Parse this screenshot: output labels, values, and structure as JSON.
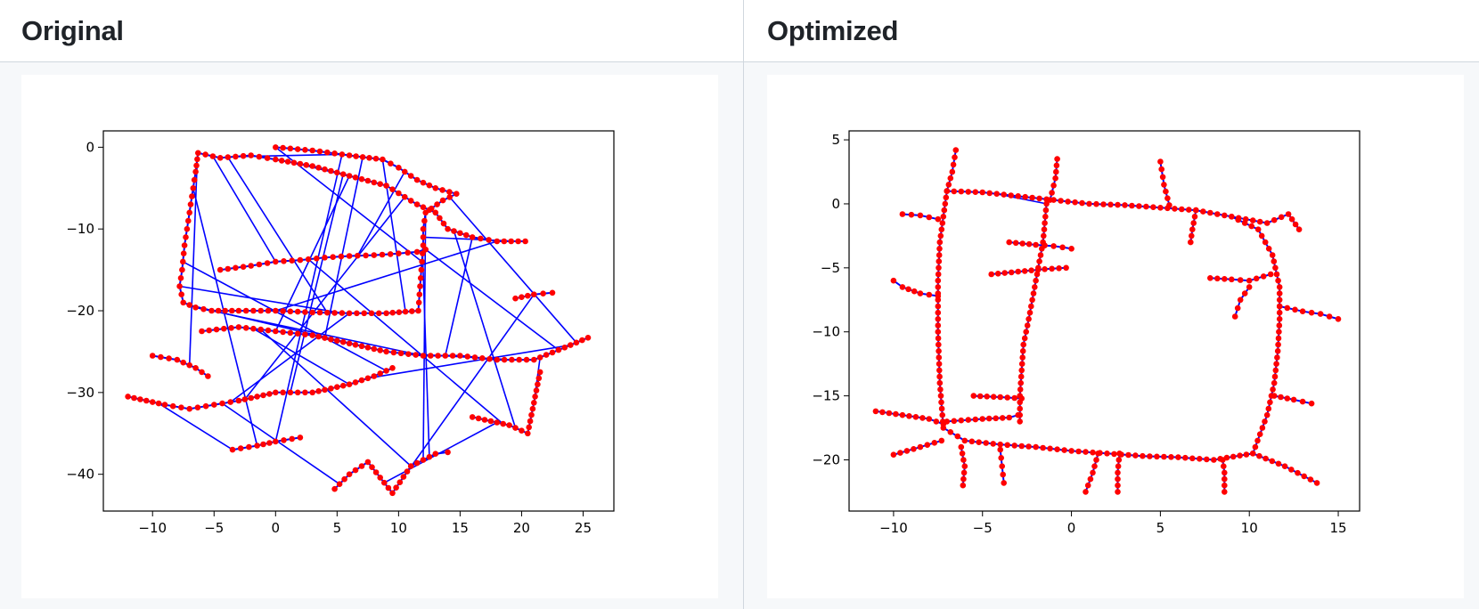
{
  "panels": [
    {
      "title": "Original",
      "chart_data": {
        "type": "line",
        "title": "",
        "xlabel": "",
        "ylabel": "",
        "xlim": [
          -14,
          27.5
        ],
        "ylim": [
          -44.5,
          2
        ],
        "xticks": [
          -10,
          -5,
          0,
          5,
          10,
          15,
          20,
          25
        ],
        "yticks": [
          0,
          -10,
          -20,
          -30,
          -40
        ],
        "xtick_labels": [
          "−10",
          "−5",
          "0",
          "5",
          "10",
          "15",
          "20",
          "25"
        ],
        "ytick_labels": [
          "0",
          "−10",
          "−20",
          "−30",
          "−40"
        ],
        "grid": false,
        "series": [
          {
            "role": "trajectory",
            "marker_color": "#ff0000",
            "line_color": "#0000ff",
            "x": [
              0.0,
              3.0,
              6.0,
              8.7,
              10.0,
              11.5,
              13.0,
              14.7,
              13.6,
              12.2,
              12.0,
              12.0,
              11.9,
              11.8,
              11.7,
              11.6,
              9.0,
              6.0,
              3.0,
              0.0,
              -3.0,
              -5.2,
              -6.5,
              -7.5,
              -7.8,
              -7.6,
              -7.4,
              -7.1,
              -6.8,
              -6.5,
              -6.3,
              -4.5,
              -2.0,
              0.0,
              3.0,
              6.0,
              9.0,
              11.5,
              13.0,
              14.0,
              16.0,
              18.0,
              20.3
            ],
            "y": [
              0.0,
              -0.4,
              -1.0,
              -1.5,
              -2.5,
              -4.0,
              -5.0,
              -5.7,
              -6.5,
              -8.0,
              -10.0,
              -12.0,
              -14.0,
              -16.0,
              -18.0,
              -20.0,
              -20.3,
              -20.3,
              -20.2,
              -20.0,
              -20.0,
              -20.0,
              -19.6,
              -19.0,
              -17.0,
              -15.0,
              -12.0,
              -9.0,
              -6.0,
              -3.0,
              -0.7,
              -1.3,
              -1.0,
              -1.5,
              -2.3,
              -3.5,
              -4.7,
              -7.0,
              -8.0,
              -10.0,
              -11.0,
              -11.5,
              -11.5
            ]
          },
          {
            "role": "trajectory-inner",
            "x": [
              -4.5,
              -2.0,
              0.0,
              2.0,
              4.0,
              6.0,
              8.0,
              10.0,
              11.5,
              12.2
            ],
            "y": [
              -15.0,
              -14.5,
              -14.0,
              -13.8,
              -13.5,
              -13.3,
              -13.2,
              -13.0,
              -12.8,
              -12.5
            ]
          },
          {
            "role": "trajectory-south",
            "x": [
              -6.0,
              -3.0,
              0.0,
              3.0,
              6.0,
              9.0,
              12.0,
              15.0,
              18.0,
              21.0,
              23.5,
              25.4
            ],
            "y": [
              -22.5,
              -22.0,
              -22.5,
              -23.0,
              -24.0,
              -25.0,
              -25.5,
              -25.5,
              -26.0,
              -26.0,
              -24.5,
              -23.3
            ]
          },
          {
            "role": "branch-lower",
            "x": [
              -12.0,
              -9.0,
              -7.0,
              -5.0,
              -3.0,
              0.0,
              3.0,
              6.0,
              8.0,
              9.5
            ],
            "y": [
              -30.5,
              -31.5,
              -32.0,
              -31.5,
              -31.0,
              -30.0,
              -30.0,
              -29.0,
              -28.0,
              -27.0
            ]
          },
          {
            "role": "branch-bottom",
            "x": [
              4.8,
              6.0,
              7.5,
              9.5,
              11.0,
              13.0,
              14.0
            ],
            "y": [
              -41.8,
              -40.0,
              -38.5,
              -42.3,
              -39.0,
              -37.5,
              -37.3
            ]
          },
          {
            "role": "branch-west",
            "x": [
              -10.0,
              -8.0,
              -6.5,
              -5.5
            ],
            "y": [
              -25.5,
              -26.0,
              -27.0,
              -28.0
            ]
          },
          {
            "role": "branch-east",
            "x": [
              16.0,
              17.5,
              19.0,
              20.5,
              21.5
            ],
            "y": [
              -33.0,
              -33.5,
              -34.0,
              -35.0,
              -27.5
            ]
          },
          {
            "role": "branch-east-2",
            "x": [
              19.5,
              21.0,
              22.5
            ],
            "y": [
              -18.5,
              -18.0,
              -17.8
            ]
          },
          {
            "role": "branch-bl",
            "x": [
              -3.5,
              -1.5,
              0.0,
              2.0
            ],
            "y": [
              -37.0,
              -36.5,
              -36.0,
              -35.5
            ]
          }
        ]
      }
    },
    {
      "title": "Optimized",
      "chart_data": {
        "type": "line",
        "title": "",
        "xlabel": "",
        "ylabel": "",
        "xlim": [
          -12.5,
          16.2
        ],
        "ylim": [
          -24,
          5.7
        ],
        "xticks": [
          -10,
          -5,
          0,
          5,
          10,
          15
        ],
        "yticks": [
          5,
          0,
          -5,
          -10,
          -15,
          -20
        ],
        "xtick_labels": [
          "−10",
          "−5",
          "0",
          "5",
          "10",
          "15"
        ],
        "ytick_labels": [
          "5",
          "0",
          "−5",
          "−10",
          "−15",
          "−20"
        ],
        "grid": false,
        "series": [
          {
            "role": "loop",
            "marker_color": "#ff0000",
            "line_color": "#0000ff",
            "x": [
              -7.0,
              -5.0,
              -3.0,
              -1.0,
              1.0,
              3.0,
              5.0,
              7.0,
              9.0,
              10.5,
              11.3,
              11.7,
              11.7,
              11.6,
              11.4,
              11.0,
              10.2,
              8.0,
              6.0,
              4.0,
              2.0,
              0.0,
              -2.0,
              -4.0,
              -6.0,
              -7.2,
              -7.4,
              -7.5,
              -7.5,
              -7.4,
              -7.2,
              -7.0
            ],
            "y": [
              1.0,
              0.9,
              0.6,
              0.3,
              0.0,
              -0.1,
              -0.3,
              -0.5,
              -1.0,
              -2.0,
              -4.0,
              -6.5,
              -9.0,
              -11.5,
              -14.0,
              -16.5,
              -19.5,
              -20.0,
              -19.8,
              -19.7,
              -19.5,
              -19.3,
              -19.0,
              -18.8,
              -18.5,
              -17.5,
              -14.0,
              -10.0,
              -6.0,
              -3.0,
              -1.0,
              1.0
            ]
          },
          {
            "role": "inner",
            "x": [
              -1.4,
              -1.6,
              -2.0,
              -2.4,
              -2.7,
              -2.8,
              -2.9,
              -2.9
            ],
            "y": [
              0.0,
              -3.0,
              -6.0,
              -9.0,
              -11.0,
              -13.0,
              -15.0,
              -17.0
            ]
          },
          {
            "role": "spur-nw",
            "x": [
              -6.5,
              -6.7,
              -7.0
            ],
            "y": [
              4.2,
              2.5,
              1.0
            ]
          },
          {
            "role": "spur-n1",
            "x": [
              -0.8,
              -0.9,
              -1.2
            ],
            "y": [
              3.5,
              2.0,
              0.3
            ]
          },
          {
            "role": "spur-n2",
            "x": [
              5.0,
              5.2,
              5.5
            ],
            "y": [
              3.3,
              1.5,
              -0.1
            ]
          },
          {
            "role": "spur-ne",
            "x": [
              9.0,
              11.0,
              12.2,
              12.8
            ],
            "y": [
              -1.0,
              -1.5,
              -0.8,
              -2.0
            ]
          },
          {
            "role": "spur-e",
            "x": [
              11.7,
              13.0,
              14.0,
              15.0
            ],
            "y": [
              -8.0,
              -8.4,
              -8.6,
              -9.0
            ]
          },
          {
            "role": "spur-e2",
            "x": [
              11.4,
              12.5,
              13.5
            ],
            "y": [
              -15.0,
              -15.3,
              -15.6
            ]
          },
          {
            "role": "spur-se",
            "x": [
              10.2,
              12.0,
              13.8
            ],
            "y": [
              -19.5,
              -20.5,
              -21.8
            ]
          },
          {
            "role": "spur-w1",
            "x": [
              -9.5,
              -8.5,
              -7.5
            ],
            "y": [
              -0.8,
              -0.9,
              -1.2
            ]
          },
          {
            "role": "spur-w2",
            "x": [
              -10.0,
              -9.5,
              -8.5,
              -7.5
            ],
            "y": [
              -6.0,
              -6.5,
              -7.0,
              -7.2
            ]
          },
          {
            "role": "spur-w3",
            "x": [
              -11.0,
              -9.5,
              -8.0,
              -7.2
            ],
            "y": [
              -16.2,
              -16.5,
              -16.8,
              -17.2
            ]
          },
          {
            "role": "spur-w4",
            "x": [
              -10.0,
              -8.5,
              -7.3
            ],
            "y": [
              -19.6,
              -19.0,
              -18.5
            ]
          },
          {
            "role": "spur-mid1",
            "x": [
              -3.5,
              -2.0,
              -1.0,
              0.0
            ],
            "y": [
              -3.0,
              -3.2,
              -3.3,
              -3.5
            ]
          },
          {
            "role": "spur-mid2",
            "x": [
              -4.5,
              -3.0,
              -1.5,
              -0.3
            ],
            "y": [
              -5.5,
              -5.3,
              -5.1,
              -5.0
            ]
          },
          {
            "role": "spur-mid3",
            "x": [
              -5.5,
              -4.0,
              -2.8
            ],
            "y": [
              -15.0,
              -15.1,
              -15.2
            ]
          },
          {
            "role": "spur-mid4",
            "x": [
              -7.0,
              -5.0,
              -3.5,
              -3.0
            ],
            "y": [
              -17.0,
              -16.8,
              -16.7,
              -16.5
            ]
          },
          {
            "role": "spur-s1",
            "x": [
              -6.2,
              -6.0,
              -6.1
            ],
            "y": [
              -19.0,
              -20.5,
              -22.0
            ]
          },
          {
            "role": "spur-s2",
            "x": [
              -4.0,
              -3.9,
              -3.8
            ],
            "y": [
              -19.2,
              -20.5,
              -21.8
            ]
          },
          {
            "role": "spur-s3",
            "x": [
              1.5,
              1.2,
              0.8
            ],
            "y": [
              -19.5,
              -21.0,
              -22.5
            ]
          },
          {
            "role": "spur-s4",
            "x": [
              2.7,
              2.6,
              2.6
            ],
            "y": [
              -19.5,
              -21.0,
              -22.5
            ]
          },
          {
            "role": "spur-s5",
            "x": [
              8.5,
              8.6,
              8.6
            ],
            "y": [
              -20.0,
              -21.0,
              -22.5
            ]
          },
          {
            "role": "spur-r1",
            "x": [
              7.8,
              9.0,
              10.0,
              11.2
            ],
            "y": [
              -5.8,
              -5.9,
              -6.0,
              -5.5
            ]
          },
          {
            "role": "spur-r2",
            "x": [
              9.2,
              9.5,
              10.0
            ],
            "y": [
              -8.8,
              -7.5,
              -6.5
            ]
          },
          {
            "role": "spur-r3",
            "x": [
              6.7,
              6.8,
              7.0
            ],
            "y": [
              -3.0,
              -2.0,
              -0.5
            ]
          }
        ]
      }
    }
  ],
  "colors": {
    "marker": "#ff0000",
    "edge": "#0000ff",
    "axes": "#000000"
  }
}
